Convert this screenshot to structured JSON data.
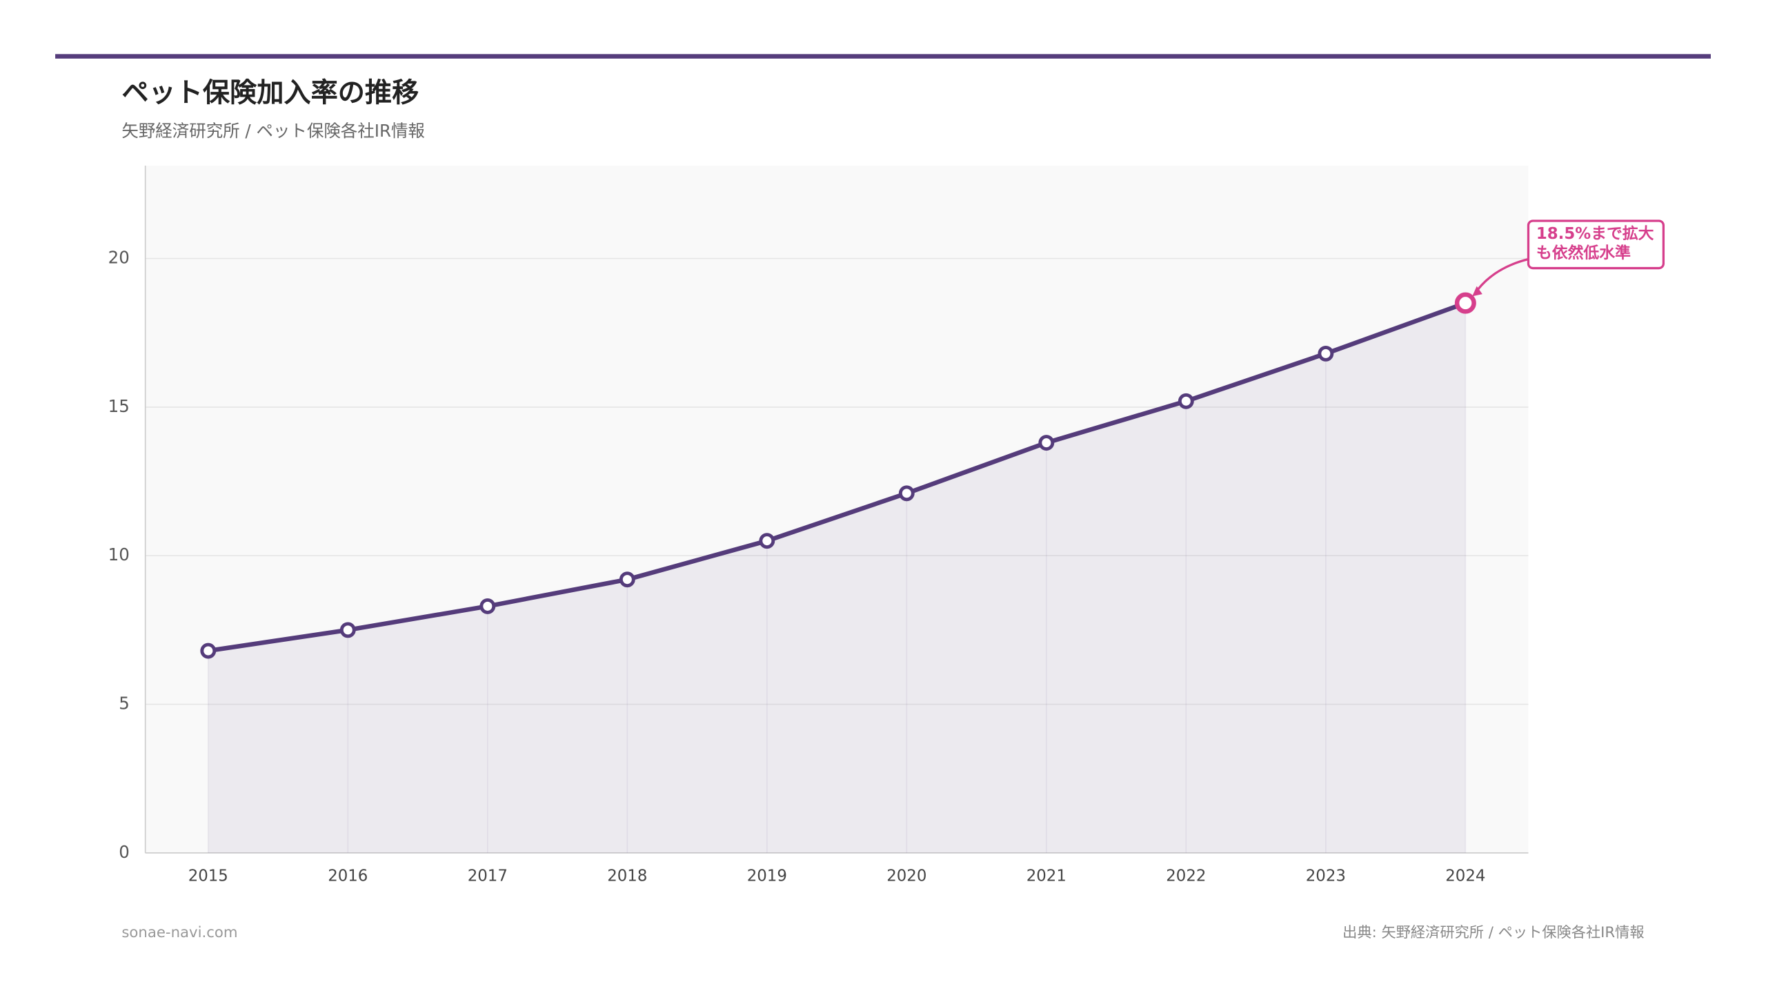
{
  "chart_data": {
    "type": "line",
    "title": "ペット保険加入率の推移",
    "subtitle": "矢野経済研究所 / ペット保険各社IR情報",
    "categories": [
      "2015",
      "2016",
      "2017",
      "2018",
      "2019",
      "2020",
      "2021",
      "2022",
      "2023",
      "2024"
    ],
    "series": [
      {
        "name": "ペット保険加入率",
        "color": "#553c7b",
        "values": [
          6.8,
          7.5,
          8.3,
          9.2,
          10.5,
          12.1,
          13.8,
          15.2,
          16.8,
          18.5
        ]
      }
    ],
    "ylim": [
      0,
      23.125
    ],
    "yticks": [
      0,
      5,
      10,
      15,
      20
    ],
    "grid": true,
    "annotation": {
      "lines": [
        "18.5%まで拡大",
        "も依然低水準"
      ],
      "color": "#d63f8c"
    },
    "footer_left": "sonae-navi.com",
    "footer_right": "出典: 矢野経済研究所 / ペット保険各社IR情報"
  }
}
